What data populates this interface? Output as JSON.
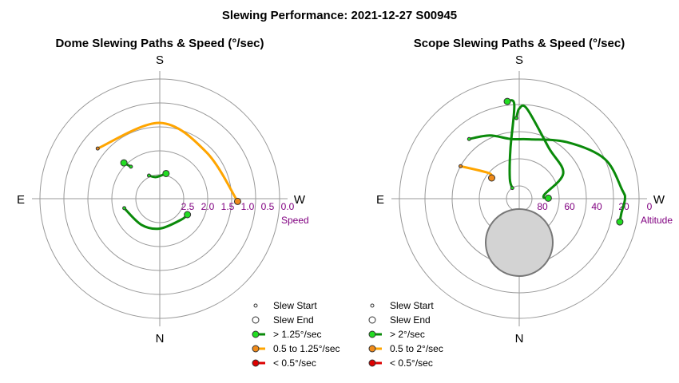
{
  "title": "Slewing Performance: 2021-12-27 S00945",
  "colors": {
    "fast": "#0a8a0a",
    "fast_fill": "#22dd22",
    "mid": "#ffa500",
    "mid_fill": "#f08a1a",
    "slow": "#dd0000",
    "slow_fill": "#dd0000",
    "grid": "#999999",
    "tick": "#800080",
    "occult": "#d3d3d3"
  },
  "chart_data": [
    {
      "type": "polar-path",
      "title": "Dome Slewing Paths & Speed (°/sec)",
      "compass": {
        "top": "S",
        "bottom": "N",
        "left": "E",
        "right": "W"
      },
      "radial_axis": {
        "label": "Speed",
        "range": [
          3.0,
          0.0
        ],
        "ticks": [
          "2.5",
          "2.0",
          "1.5",
          "1.0",
          "0.5",
          "0.0"
        ],
        "tick_values": [
          2.5,
          2.0,
          1.5,
          1.0,
          0.5,
          0.0
        ]
      },
      "azimuth_convention": "0 = S (top), 90 = W (right), 180 = N (bottom), 270 = E (left)",
      "paths": [
        {
          "speed_class": "mid",
          "points": [
            [
              -51,
              1.0
            ],
            [
              0,
              1.1
            ],
            [
              45,
              1.35
            ],
            [
              92,
              1.05
            ]
          ]
        },
        {
          "speed_class": "fast",
          "points": [
            [
              -42,
              1.92
            ],
            [
              -45,
              1.73
            ]
          ]
        },
        {
          "speed_class": "fast",
          "points": [
            [
              -25,
              2.36
            ],
            [
              -10,
              2.45
            ],
            [
              14,
              2.35
            ]
          ]
        },
        {
          "speed_class": "fast",
          "points": [
            [
              -105,
              2.08
            ],
            [
              -145,
              2.2
            ],
            [
              -180,
              2.25
            ],
            [
              -225,
              2.25
            ],
            [
              -240,
              2.2
            ]
          ]
        }
      ],
      "legend": [
        {
          "marker": "start",
          "label": "Slew Start"
        },
        {
          "marker": "end",
          "label": "Slew End"
        },
        {
          "marker": "fast",
          "label": "> 1.25°/sec"
        },
        {
          "marker": "mid",
          "label": "0.5 to 1.25°/sec"
        },
        {
          "marker": "slow",
          "label": "< 0.5°/sec"
        }
      ]
    },
    {
      "type": "polar-path",
      "title": "Scope Slewing Paths & Speed (°/sec)",
      "compass": {
        "top": "S",
        "bottom": "N",
        "left": "E",
        "right": "W"
      },
      "radial_axis": {
        "label": "Altitude",
        "range": [
          90,
          0
        ],
        "ticks": [
          "80",
          "60",
          "40",
          "20",
          "0"
        ],
        "tick_values": [
          80,
          60,
          40,
          20,
          0
        ]
      },
      "azimuth_convention": "0 = S (top), 90 = W (right), 180 = N (bottom), 270 = E (left)",
      "occult_region": {
        "az": 180,
        "alt": 54,
        "radius_deg": 25
      },
      "paths": [
        {
          "speed_class": "fast",
          "points": [
            [
              -2,
              30
            ],
            [
              0,
              23
            ],
            [
              5,
              23
            ],
            [
              30,
              46
            ],
            [
              60,
              52
            ],
            [
              82,
              71
            ],
            [
              89,
              68
            ]
          ]
        },
        {
          "speed_class": "fast",
          "points": [
            [
              -40,
              32
            ],
            [
              -25,
              38
            ],
            [
              -8,
              45
            ],
            [
              10,
              45
            ],
            [
              40,
              35
            ],
            [
              65,
              20
            ],
            [
              85,
              13
            ],
            [
              90,
              11
            ],
            [
              98,
              13
            ],
            [
              103,
              13
            ]
          ]
        },
        {
          "speed_class": "fast",
          "points": [
            [
              -33,
              80
            ],
            [
              -25,
              73
            ],
            [
              -10,
              52
            ],
            [
              -3,
              20
            ],
            [
              -7,
              17
            ]
          ]
        },
        {
          "speed_class": "mid",
          "points": [
            [
              -61,
              40
            ],
            [
              -50,
              60
            ],
            [
              -53,
              64
            ]
          ]
        }
      ],
      "legend": [
        {
          "marker": "start",
          "label": "Slew Start"
        },
        {
          "marker": "end",
          "label": "Slew End"
        },
        {
          "marker": "fast",
          "label": "> 2°/sec"
        },
        {
          "marker": "mid",
          "label": "0.5 to 2°/sec"
        },
        {
          "marker": "slow",
          "label": "< 0.5°/sec"
        }
      ]
    }
  ]
}
